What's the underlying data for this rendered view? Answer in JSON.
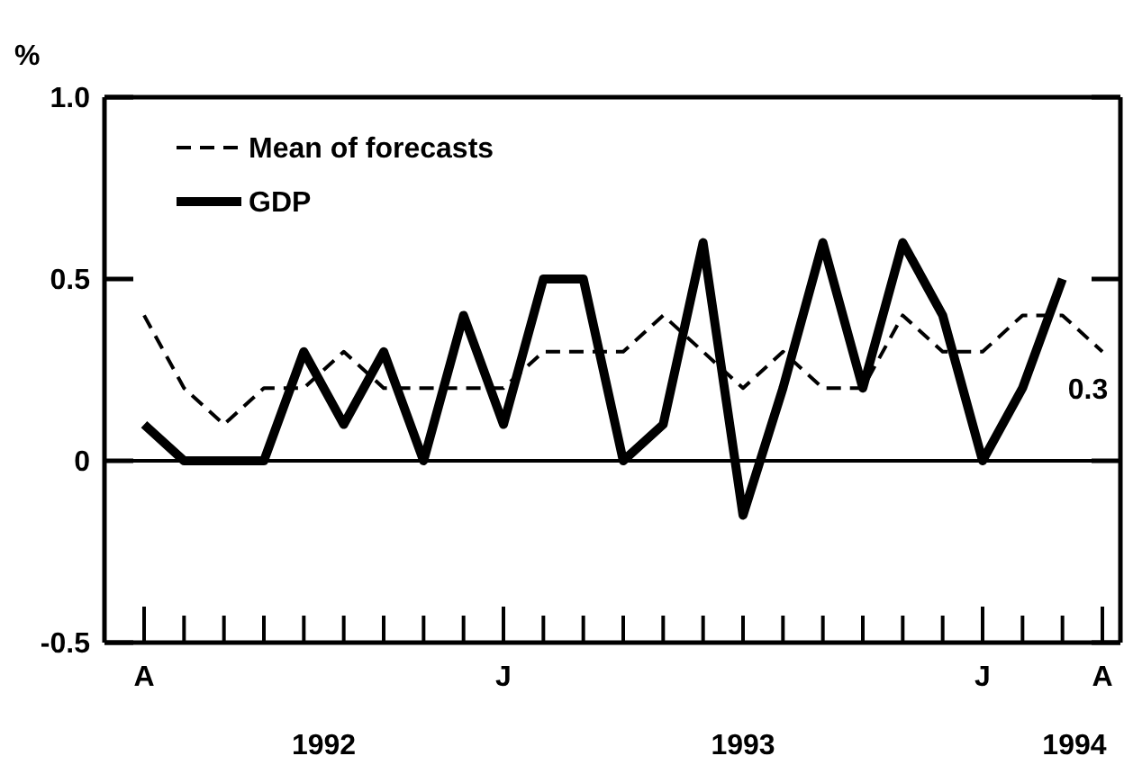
{
  "chart_data": {
    "type": "line",
    "ylabel": "%",
    "categories": [
      "A",
      null,
      null,
      null,
      null,
      null,
      null,
      null,
      null,
      "J",
      null,
      null,
      null,
      null,
      null,
      null,
      null,
      null,
      null,
      null,
      null,
      "J",
      null,
      null,
      "A"
    ],
    "ylim": [
      -0.5,
      1.0
    ],
    "yticks": [
      -0.5,
      0,
      0.5,
      {
        "value": 1.0,
        "label": "1.0"
      }
    ],
    "legend": "top left",
    "ref_lines": [
      {
        "axis": "y",
        "value": 0
      }
    ],
    "series": [
      {
        "name": "Mean of forecasts",
        "color": "#000000",
        "line_style": "dashed",
        "values": [
          0.4,
          0.2,
          0.1,
          0.2,
          0.2,
          0.3,
          0.2,
          0.2,
          0.2,
          0.2,
          0.3,
          0.3,
          0.3,
          0.4,
          0.3,
          0.2,
          0.3,
          0.2,
          0.2,
          0.4,
          0.3,
          0.3,
          0.4,
          0.4,
          0.3
        ]
      },
      {
        "name": "GDP",
        "color": "#000000",
        "line_style": "solid",
        "values": [
          0.1,
          0,
          0,
          0,
          0.3,
          0.1,
          0.3,
          0,
          0.4,
          0.1,
          0.5,
          0.5,
          0,
          0.1,
          0.6,
          -0.15,
          0.2,
          0.6,
          0.2,
          0.6,
          0.4,
          0,
          0.2,
          0.5,
          null
        ]
      }
    ],
    "annotations": [
      {
        "text": "0.3",
        "y": 0.3
      },
      "1992",
      "1993",
      "1994"
    ]
  }
}
